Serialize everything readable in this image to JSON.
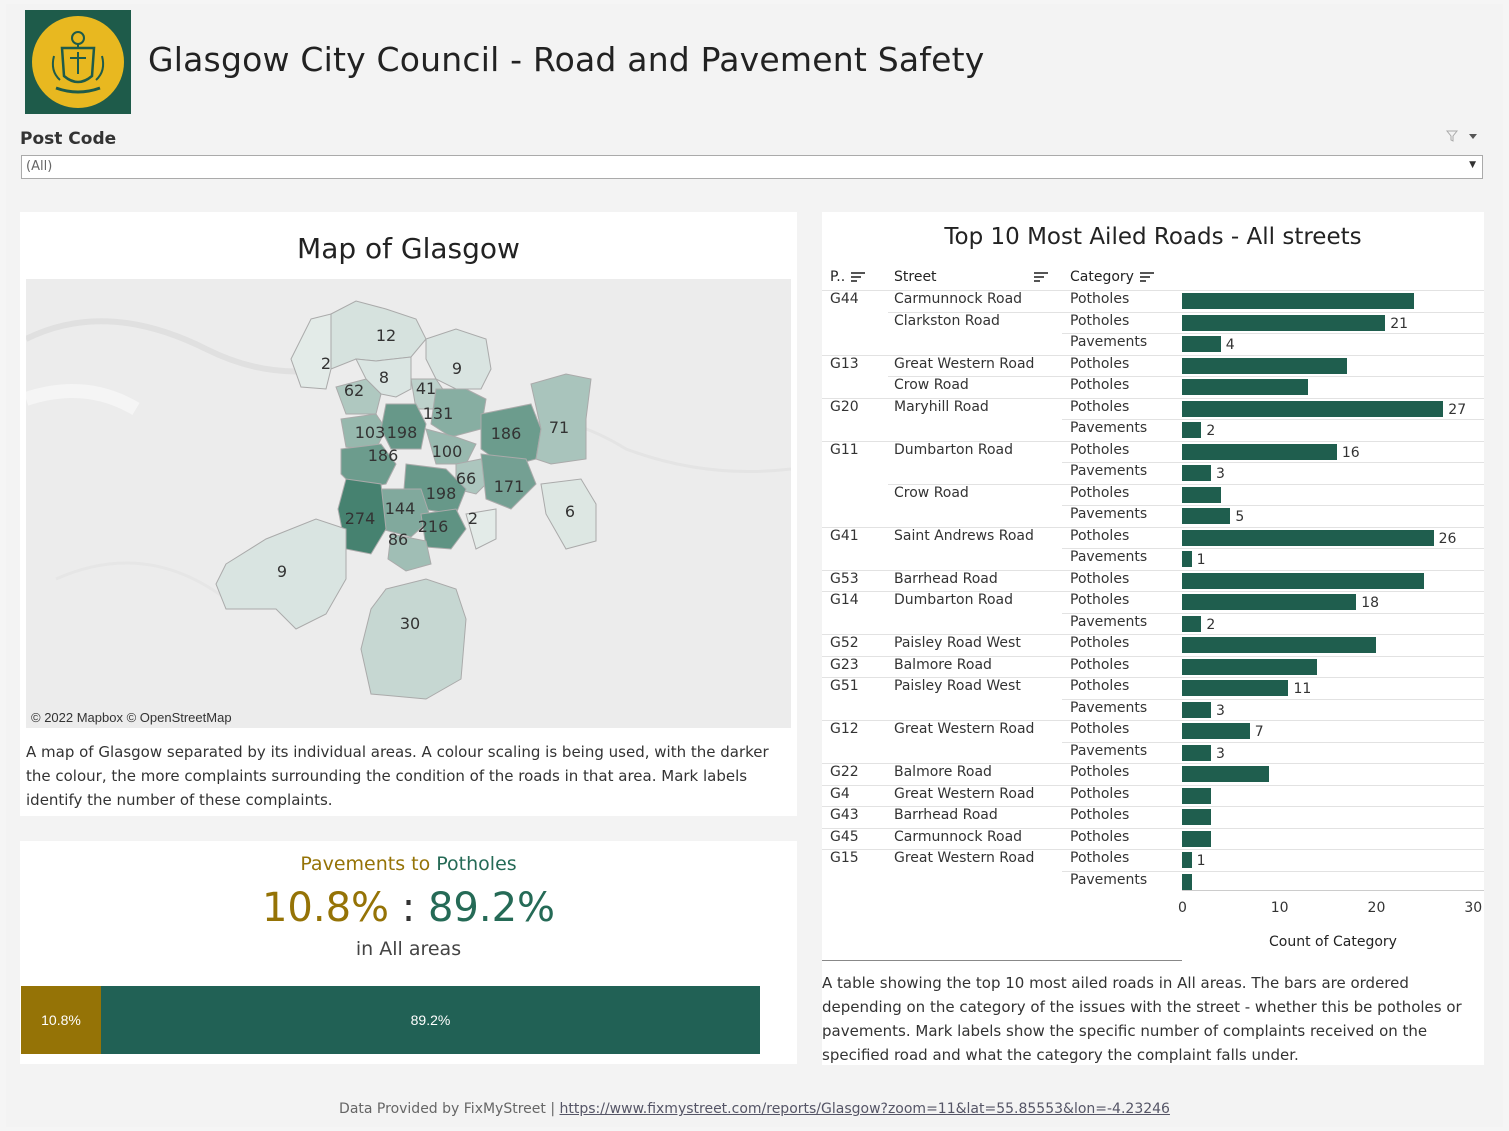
{
  "header": {
    "title": "Glasgow City Council - Road and Pavement Safety"
  },
  "filter": {
    "label": "Post Code",
    "value": "(All)"
  },
  "map": {
    "title": "Map of Glasgow",
    "credit": "© 2022 Mapbox  © OpenStreetMap",
    "description": "A map of Glasgow separated by its individual areas. A colour scaling is being used, with the darker the colour, the more complaints surrounding the condition of the roads in that area. Mark labels identify the number of these complaints.",
    "labels": [
      "12",
      "2",
      "8",
      "9",
      "62",
      "41",
      "131",
      "186",
      "71",
      "103",
      "198",
      "100",
      "186",
      "66",
      "171",
      "198",
      "144",
      "274",
      "216",
      "2",
      "86",
      "6",
      "9",
      "30"
    ]
  },
  "ratio": {
    "sub_a": "Pavements",
    "sub_to": " to ",
    "sub_b": "Potholes",
    "pav_pct": "10.8%",
    "colon": " : ",
    "pot_pct": "89.2%",
    "areas": "in All areas",
    "pav_value": 10.8,
    "pot_value": 89.2
  },
  "colors": {
    "potholes": "#1f5e4e",
    "pavements": "#957306"
  },
  "chart_data": {
    "type": "bar",
    "title": "Top 10 Most Ailed Roads - All streets",
    "columns": [
      "P..",
      "Street",
      "Category"
    ],
    "xlabel": "Count of Category",
    "xlim": [
      0,
      31
    ],
    "xticks": [
      "0",
      "10",
      "20",
      "30"
    ],
    "rows": [
      {
        "pc": "G44",
        "street": "Carmunnock Road",
        "cat": "Potholes",
        "value": 24,
        "label": ""
      },
      {
        "pc": "",
        "street": "Clarkston Road",
        "cat": "Potholes",
        "value": 21,
        "label": "21"
      },
      {
        "pc": "",
        "street": "",
        "cat": "Pavements",
        "value": 4,
        "label": "4"
      },
      {
        "pc": "G13",
        "street": "Great Western Road",
        "cat": "Potholes",
        "value": 17,
        "label": ""
      },
      {
        "pc": "",
        "street": "Crow Road",
        "cat": "Potholes",
        "value": 13,
        "label": ""
      },
      {
        "pc": "G20",
        "street": "Maryhill Road",
        "cat": "Potholes",
        "value": 27,
        "label": "27"
      },
      {
        "pc": "",
        "street": "",
        "cat": "Pavements",
        "value": 2,
        "label": "2"
      },
      {
        "pc": "G11",
        "street": "Dumbarton Road",
        "cat": "Potholes",
        "value": 16,
        "label": "16"
      },
      {
        "pc": "",
        "street": "",
        "cat": "Pavements",
        "value": 3,
        "label": "3"
      },
      {
        "pc": "",
        "street": "Crow Road",
        "cat": "Potholes",
        "value": 4,
        "label": ""
      },
      {
        "pc": "",
        "street": "",
        "cat": "Pavements",
        "value": 5,
        "label": "5"
      },
      {
        "pc": "G41",
        "street": "Saint Andrews Road",
        "cat": "Potholes",
        "value": 26,
        "label": "26"
      },
      {
        "pc": "",
        "street": "",
        "cat": "Pavements",
        "value": 1,
        "label": "1"
      },
      {
        "pc": "G53",
        "street": "Barrhead Road",
        "cat": "Potholes",
        "value": 25,
        "label": ""
      },
      {
        "pc": "G14",
        "street": "Dumbarton Road",
        "cat": "Potholes",
        "value": 18,
        "label": "18"
      },
      {
        "pc": "",
        "street": "",
        "cat": "Pavements",
        "value": 2,
        "label": "2"
      },
      {
        "pc": "G52",
        "street": "Paisley Road West",
        "cat": "Potholes",
        "value": 20,
        "label": ""
      },
      {
        "pc": "G23",
        "street": "Balmore Road",
        "cat": "Potholes",
        "value": 14,
        "label": ""
      },
      {
        "pc": "G51",
        "street": "Paisley Road West",
        "cat": "Potholes",
        "value": 11,
        "label": "11"
      },
      {
        "pc": "",
        "street": "",
        "cat": "Pavements",
        "value": 3,
        "label": "3"
      },
      {
        "pc": "G12",
        "street": "Great Western Road",
        "cat": "Potholes",
        "value": 7,
        "label": "7"
      },
      {
        "pc": "",
        "street": "",
        "cat": "Pavements",
        "value": 3,
        "label": "3"
      },
      {
        "pc": "G22",
        "street": "Balmore Road",
        "cat": "Potholes",
        "value": 9,
        "label": ""
      },
      {
        "pc": "G4",
        "street": "Great Western Road",
        "cat": "Potholes",
        "value": 3,
        "label": ""
      },
      {
        "pc": "G43",
        "street": "Barrhead Road",
        "cat": "Potholes",
        "value": 3,
        "label": ""
      },
      {
        "pc": "G45",
        "street": "Carmunnock Road",
        "cat": "Potholes",
        "value": 3,
        "label": ""
      },
      {
        "pc": "G15",
        "street": "Great Western Road",
        "cat": "Potholes",
        "value": 1,
        "label": "1"
      },
      {
        "pc": "",
        "street": "",
        "cat": "Pavements",
        "value": 1,
        "label": ""
      }
    ],
    "description": "A table showing the top 10 most ailed roads in All areas. The bars are ordered depending on the category of the issues with the street - whether this be potholes or pavements. Mark labels show the specific number of complaints received on the specified road and what the category the complaint falls under."
  },
  "footer": {
    "text": "Data Provided by FixMyStreet | ",
    "link": "https://www.fixmystreet.com/reports/Glasgow?zoom=11&lat=55.85553&lon=-4.23246"
  }
}
